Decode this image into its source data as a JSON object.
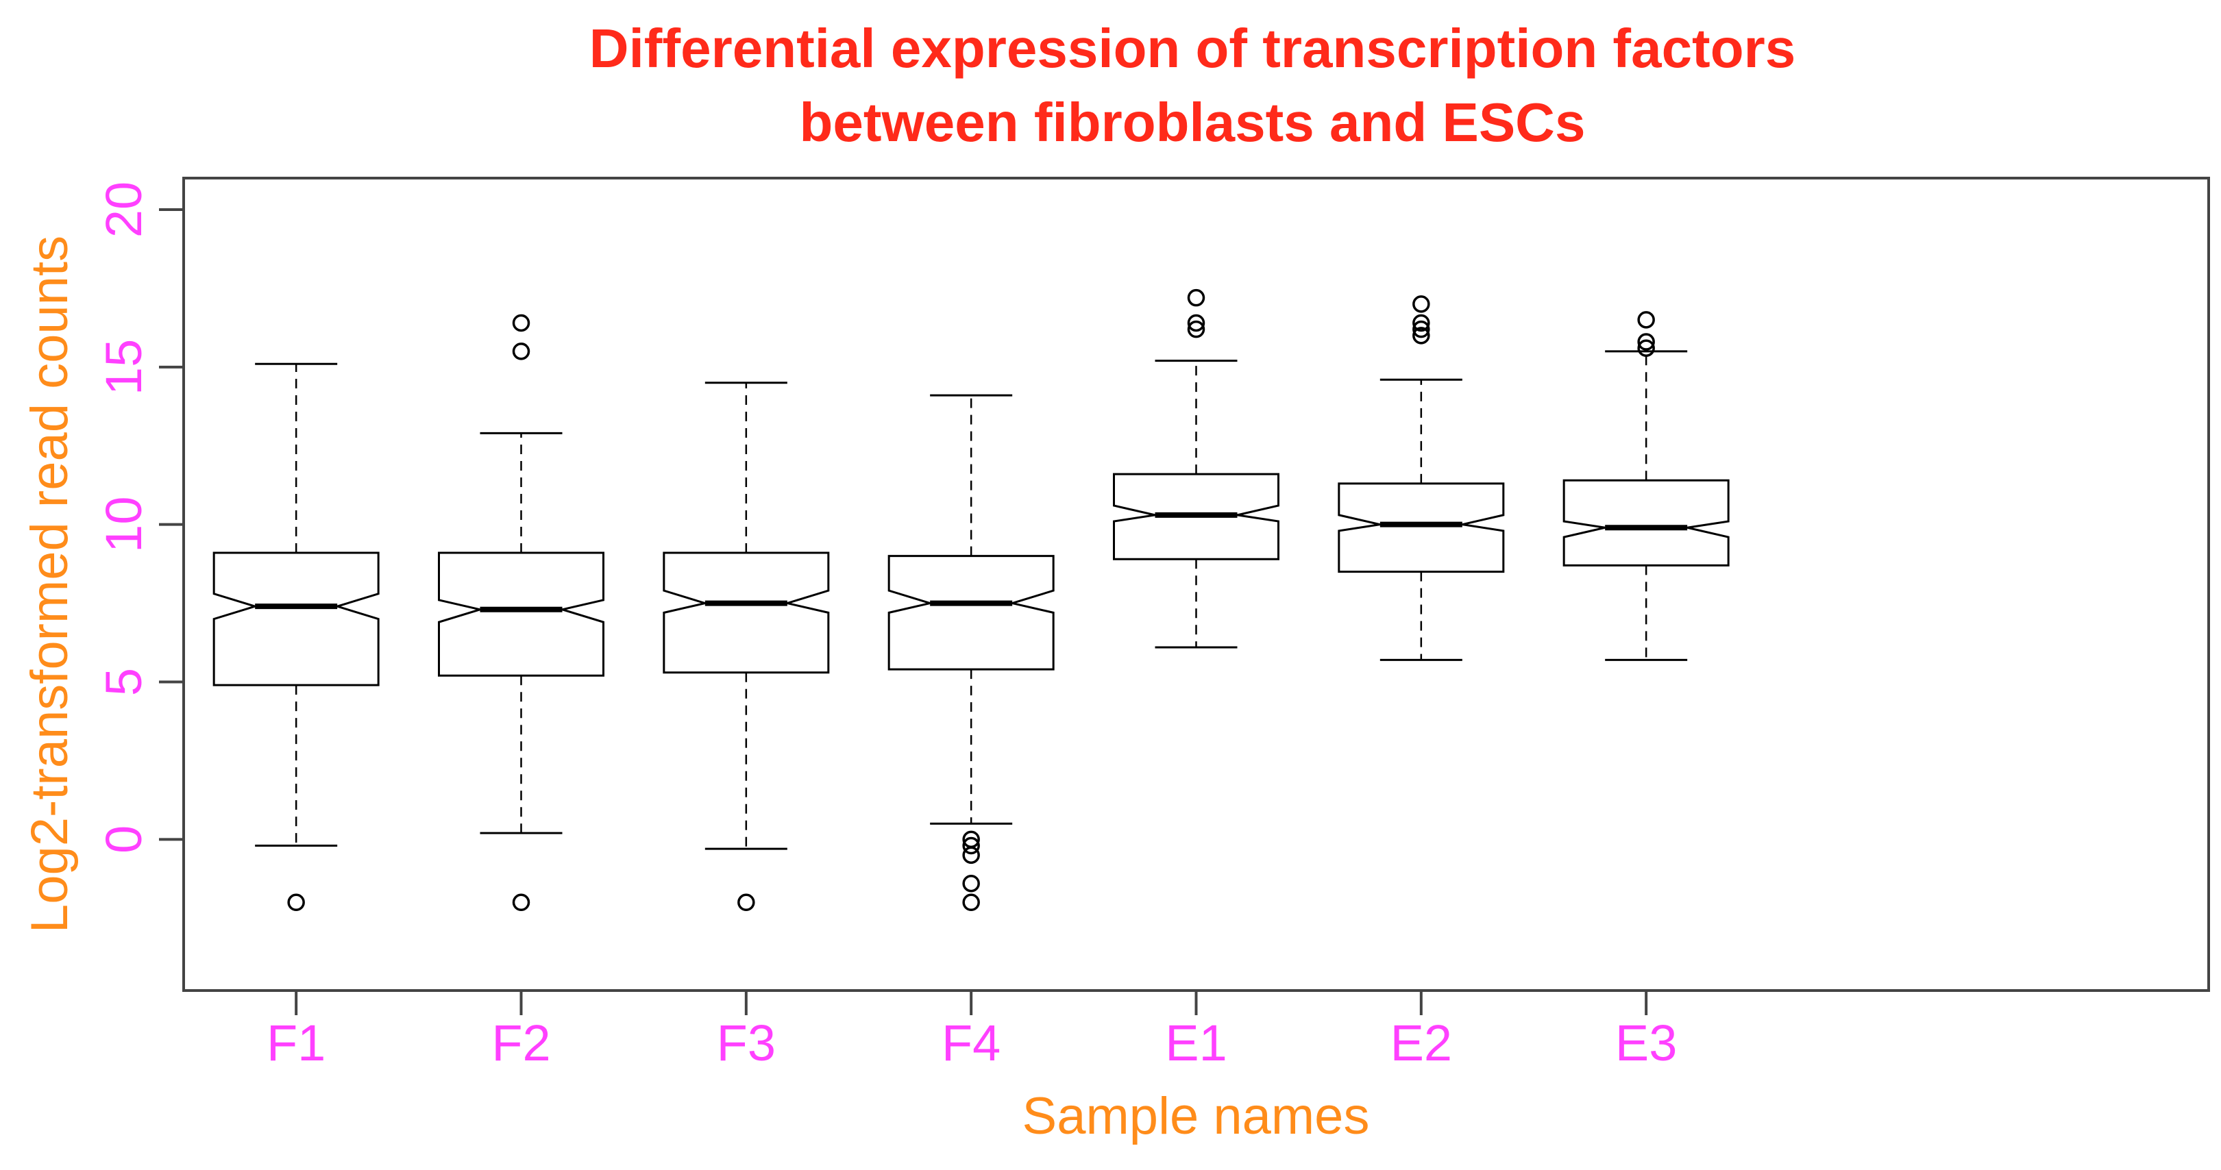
{
  "chart_data": {
    "type": "boxplot",
    "notched": true,
    "title": [
      "Differential expression of transcription factors",
      "between fibroblasts and ESCs"
    ],
    "xlabel": "Sample names",
    "ylabel": "Log2-transformed read counts",
    "ylim": [
      -4.8,
      21
    ],
    "yticks": [
      0,
      5,
      10,
      15,
      20
    ],
    "ytick_labels": [
      "0",
      "5",
      "10",
      "15",
      "20"
    ],
    "categories": [
      "F1",
      "F2",
      "F3",
      "F4",
      "E1",
      "E2",
      "E3"
    ],
    "xlim": [
      0.5,
      9.5
    ],
    "grid": false,
    "legend": "none",
    "colors": {
      "title": "#ff2a1a",
      "axis_label": "#ff8c1a",
      "tick_label": "#ff40ff",
      "box": "#000000"
    },
    "boxes": [
      {
        "name": "F1",
        "whisker_low": -0.2,
        "q1": 4.9,
        "median": 7.4,
        "q3": 9.1,
        "whisker_high": 15.1,
        "notch_low": 7.0,
        "notch_high": 7.8,
        "outliers": [
          -2.0
        ]
      },
      {
        "name": "F2",
        "whisker_low": 0.2,
        "q1": 5.2,
        "median": 7.3,
        "q3": 9.1,
        "whisker_high": 12.9,
        "notch_low": 6.9,
        "notch_high": 7.6,
        "outliers": [
          -2.0,
          15.5,
          16.4
        ]
      },
      {
        "name": "F3",
        "whisker_low": -0.3,
        "q1": 5.3,
        "median": 7.5,
        "q3": 9.1,
        "whisker_high": 14.5,
        "notch_low": 7.2,
        "notch_high": 7.9,
        "outliers": [
          -2.0
        ]
      },
      {
        "name": "F4",
        "whisker_low": 0.5,
        "q1": 5.4,
        "median": 7.5,
        "q3": 9.0,
        "whisker_high": 14.1,
        "notch_low": 7.2,
        "notch_high": 7.9,
        "outliers": [
          -2.0,
          -1.4,
          -0.5,
          -0.2,
          0.0
        ]
      },
      {
        "name": "E1",
        "whisker_low": 6.1,
        "q1": 8.9,
        "median": 10.3,
        "q3": 11.6,
        "whisker_high": 15.2,
        "notch_low": 10.1,
        "notch_high": 10.6,
        "outliers": [
          16.2,
          16.4,
          17.2
        ]
      },
      {
        "name": "E2",
        "whisker_low": 5.7,
        "q1": 8.5,
        "median": 10.0,
        "q3": 11.3,
        "whisker_high": 14.6,
        "notch_low": 9.8,
        "notch_high": 10.3,
        "outliers": [
          16.0,
          16.2,
          16.4,
          17.0
        ]
      },
      {
        "name": "E3",
        "whisker_low": 5.7,
        "q1": 8.7,
        "median": 9.9,
        "q3": 11.4,
        "whisker_high": 15.5,
        "notch_low": 9.6,
        "notch_high": 10.1,
        "outliers": [
          15.6,
          15.8,
          16.5
        ]
      }
    ]
  }
}
